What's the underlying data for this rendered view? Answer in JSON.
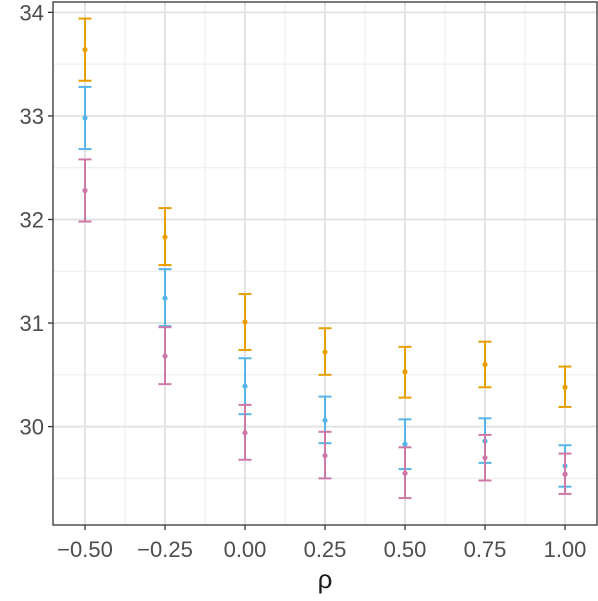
{
  "chart_data": {
    "type": "scatter",
    "title": "",
    "xlabel": "ρ",
    "ylabel": "",
    "x": [
      -0.5,
      -0.25,
      0.0,
      0.25,
      0.5,
      0.75,
      1.0
    ],
    "x_tick_labels": [
      "−0.50",
      "−0.25",
      "0.00",
      "0.25",
      "0.50",
      "0.75",
      "1.00"
    ],
    "y_ticks": [
      30,
      31,
      32,
      33,
      34
    ],
    "y_tick_labels": [
      "30",
      "31",
      "32",
      "33",
      "34"
    ],
    "xlim": [
      -0.6,
      1.1
    ],
    "ylim": [
      29.05,
      34.1
    ],
    "grid": true,
    "error_bars": true,
    "series": [
      {
        "color": "#E69F00",
        "values": [
          33.64,
          31.83,
          31.01,
          30.72,
          30.53,
          30.6,
          30.38
        ],
        "lower": [
          33.34,
          31.56,
          30.74,
          30.5,
          30.28,
          30.38,
          30.19
        ],
        "upper": [
          33.94,
          32.11,
          31.28,
          30.95,
          30.77,
          30.82,
          30.58
        ]
      },
      {
        "color": "#56B4E9",
        "values": [
          32.98,
          31.24,
          30.39,
          30.06,
          29.83,
          29.86,
          29.62
        ],
        "lower": [
          32.68,
          30.97,
          30.12,
          29.84,
          29.59,
          29.65,
          29.42
        ],
        "upper": [
          33.28,
          31.52,
          30.66,
          30.29,
          30.07,
          30.08,
          29.82
        ]
      },
      {
        "color": "#CC79A7",
        "values": [
          32.28,
          30.68,
          29.94,
          29.72,
          29.55,
          29.7,
          29.54
        ],
        "lower": [
          31.98,
          30.41,
          29.68,
          29.5,
          29.31,
          29.48,
          29.35
        ],
        "upper": [
          32.58,
          30.96,
          30.21,
          29.95,
          29.8,
          29.92,
          29.74
        ]
      }
    ]
  }
}
